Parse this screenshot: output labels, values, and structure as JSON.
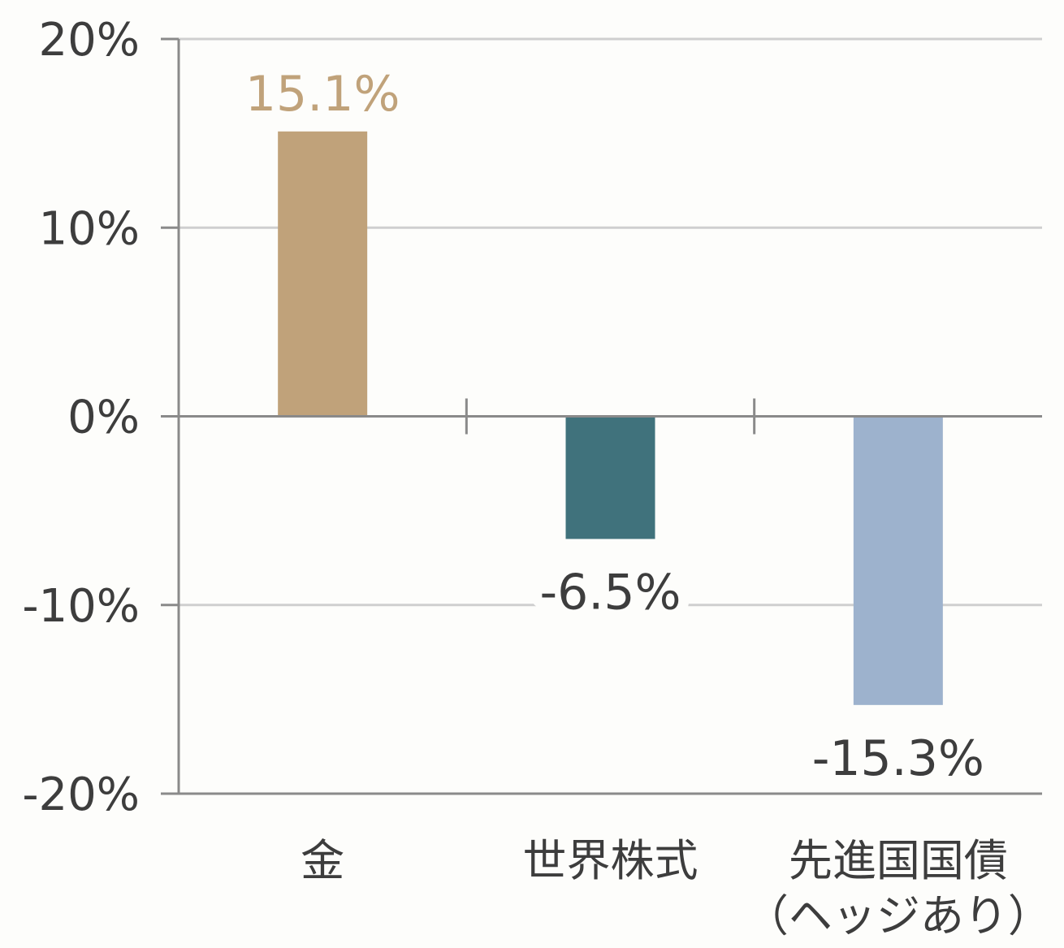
{
  "chart_data": {
    "type": "bar",
    "categories": [
      {
        "lines": [
          "金"
        ]
      },
      {
        "lines": [
          "世界株式"
        ]
      },
      {
        "lines": [
          "先進国国債",
          "（ヘッジあり）"
        ]
      }
    ],
    "values": [
      15.1,
      -6.5,
      -15.3
    ],
    "value_labels": [
      "15.1%",
      "-6.5%",
      "-15.3%"
    ],
    "bar_colors": [
      "#c0a27a",
      "#40727c",
      "#9db2cd"
    ],
    "value_label_colors": [
      "#c0a27a",
      "#3d3d3d",
      "#3d3d3d"
    ],
    "y_ticks": [
      20,
      10,
      0,
      -10,
      -20
    ],
    "y_tick_labels": [
      "20%",
      "10%",
      "0%",
      "-10%",
      "-20%"
    ],
    "ylim": [
      -20,
      20
    ],
    "grid": true,
    "legend": "none"
  }
}
